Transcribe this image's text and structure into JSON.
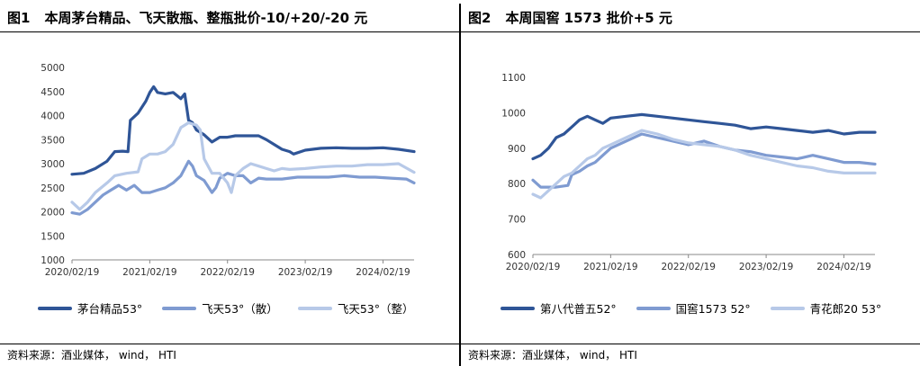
{
  "left": {
    "fig_no": "图1",
    "title": "本周茅台精品、飞天散瓶、整瓶批价-10/+20/-20 元",
    "source": "资料来源：酒业媒体， wind， HTI",
    "chart_data": {
      "type": "line",
      "xlabel": "",
      "ylabel": "",
      "ylim": [
        1000,
        5000
      ],
      "yticks": [
        1000,
        1500,
        2000,
        2500,
        3000,
        3500,
        4000,
        4500,
        5000
      ],
      "xlim": [
        0,
        4.4
      ],
      "xticks": [
        0,
        1,
        2,
        3,
        4
      ],
      "xtick_labels": [
        "2020/02/19",
        "2021/02/19",
        "2022/02/19",
        "2023/02/19",
        "2024/02/19"
      ],
      "legend_position": "bottom",
      "grid": false,
      "series": [
        {
          "name": "茅台精品53°",
          "color": "#2f5597",
          "points": [
            [
              0,
              2780
            ],
            [
              0.15,
              2800
            ],
            [
              0.3,
              2900
            ],
            [
              0.45,
              3050
            ],
            [
              0.55,
              3250
            ],
            [
              0.65,
              3260
            ],
            [
              0.72,
              3250
            ],
            [
              0.75,
              3900
            ],
            [
              0.85,
              4050
            ],
            [
              0.95,
              4300
            ],
            [
              1.0,
              4480
            ],
            [
              1.05,
              4600
            ],
            [
              1.1,
              4480
            ],
            [
              1.2,
              4450
            ],
            [
              1.3,
              4480
            ],
            [
              1.4,
              4350
            ],
            [
              1.45,
              4450
            ],
            [
              1.5,
              3900
            ],
            [
              1.55,
              3850
            ],
            [
              1.6,
              3700
            ],
            [
              1.7,
              3600
            ],
            [
              1.8,
              3450
            ],
            [
              1.9,
              3550
            ],
            [
              2.0,
              3550
            ],
            [
              2.1,
              3580
            ],
            [
              2.2,
              3580
            ],
            [
              2.4,
              3580
            ],
            [
              2.5,
              3500
            ],
            [
              2.6,
              3400
            ],
            [
              2.7,
              3300
            ],
            [
              2.8,
              3250
            ],
            [
              2.85,
              3200
            ],
            [
              3.0,
              3280
            ],
            [
              3.2,
              3320
            ],
            [
              3.4,
              3330
            ],
            [
              3.6,
              3320
            ],
            [
              3.8,
              3320
            ],
            [
              4.0,
              3330
            ],
            [
              4.2,
              3300
            ],
            [
              4.4,
              3250
            ]
          ]
        },
        {
          "name": "飞天53°（散）",
          "color": "#7f9bd1",
          "points": [
            [
              0,
              1980
            ],
            [
              0.1,
              1950
            ],
            [
              0.2,
              2050
            ],
            [
              0.3,
              2200
            ],
            [
              0.4,
              2350
            ],
            [
              0.5,
              2450
            ],
            [
              0.6,
              2550
            ],
            [
              0.7,
              2450
            ],
            [
              0.8,
              2550
            ],
            [
              0.9,
              2400
            ],
            [
              1.0,
              2400
            ],
            [
              1.1,
              2450
            ],
            [
              1.2,
              2500
            ],
            [
              1.3,
              2600
            ],
            [
              1.4,
              2750
            ],
            [
              1.5,
              3050
            ],
            [
              1.55,
              2950
            ],
            [
              1.6,
              2750
            ],
            [
              1.7,
              2650
            ],
            [
              1.8,
              2400
            ],
            [
              1.85,
              2500
            ],
            [
              1.9,
              2700
            ],
            [
              2.0,
              2800
            ],
            [
              2.1,
              2750
            ],
            [
              2.2,
              2750
            ],
            [
              2.3,
              2600
            ],
            [
              2.4,
              2700
            ],
            [
              2.5,
              2680
            ],
            [
              2.7,
              2680
            ],
            [
              2.9,
              2720
            ],
            [
              3.1,
              2720
            ],
            [
              3.3,
              2720
            ],
            [
              3.5,
              2750
            ],
            [
              3.7,
              2720
            ],
            [
              3.9,
              2720
            ],
            [
              4.1,
              2700
            ],
            [
              4.3,
              2680
            ],
            [
              4.4,
              2600
            ]
          ]
        },
        {
          "name": "飞天53°（整）",
          "color": "#b7c9e8",
          "points": [
            [
              0,
              2200
            ],
            [
              0.1,
              2050
            ],
            [
              0.2,
              2200
            ],
            [
              0.3,
              2400
            ],
            [
              0.45,
              2600
            ],
            [
              0.55,
              2750
            ],
            [
              0.7,
              2800
            ],
            [
              0.85,
              2830
            ],
            [
              0.9,
              3100
            ],
            [
              1.0,
              3200
            ],
            [
              1.1,
              3200
            ],
            [
              1.2,
              3250
            ],
            [
              1.3,
              3400
            ],
            [
              1.4,
              3750
            ],
            [
              1.5,
              3850
            ],
            [
              1.6,
              3800
            ],
            [
              1.65,
              3700
            ],
            [
              1.7,
              3100
            ],
            [
              1.8,
              2800
            ],
            [
              1.9,
              2800
            ],
            [
              2.0,
              2600
            ],
            [
              2.05,
              2400
            ],
            [
              2.1,
              2750
            ],
            [
              2.2,
              2900
            ],
            [
              2.3,
              3000
            ],
            [
              2.4,
              2950
            ],
            [
              2.5,
              2900
            ],
            [
              2.6,
              2850
            ],
            [
              2.7,
              2900
            ],
            [
              2.8,
              2880
            ],
            [
              3.0,
              2900
            ],
            [
              3.2,
              2930
            ],
            [
              3.4,
              2950
            ],
            [
              3.6,
              2950
            ],
            [
              3.8,
              2980
            ],
            [
              4.0,
              2980
            ],
            [
              4.2,
              3000
            ],
            [
              4.4,
              2820
            ]
          ]
        }
      ]
    }
  },
  "right": {
    "fig_no": "图2",
    "title": "本周国窖 1573 批价+5 元",
    "source": "资料来源：酒业媒体， wind， HTI",
    "chart_data": {
      "type": "line",
      "xlabel": "",
      "ylabel": "",
      "ylim": [
        600,
        1100
      ],
      "yticks": [
        600,
        700,
        800,
        900,
        1000,
        1100
      ],
      "xlim": [
        0,
        4.4
      ],
      "xticks": [
        0,
        1,
        2,
        3,
        4
      ],
      "xtick_labels": [
        "2020/02/19",
        "2021/02/19",
        "2022/02/19",
        "2023/02/19",
        "2024/02/19"
      ],
      "legend_position": "bottom",
      "grid": false,
      "series": [
        {
          "name": "第八代普五52°",
          "color": "#2f5597",
          "points": [
            [
              0,
              870
            ],
            [
              0.1,
              880
            ],
            [
              0.2,
              900
            ],
            [
              0.3,
              930
            ],
            [
              0.4,
              940
            ],
            [
              0.5,
              960
            ],
            [
              0.6,
              980
            ],
            [
              0.7,
              990
            ],
            [
              0.8,
              980
            ],
            [
              0.9,
              970
            ],
            [
              1.0,
              985
            ],
            [
              1.2,
              990
            ],
            [
              1.4,
              995
            ],
            [
              1.6,
              990
            ],
            [
              1.8,
              985
            ],
            [
              2.0,
              980
            ],
            [
              2.2,
              975
            ],
            [
              2.4,
              970
            ],
            [
              2.6,
              965
            ],
            [
              2.8,
              955
            ],
            [
              3.0,
              960
            ],
            [
              3.2,
              955
            ],
            [
              3.4,
              950
            ],
            [
              3.6,
              945
            ],
            [
              3.8,
              950
            ],
            [
              4.0,
              940
            ],
            [
              4.2,
              945
            ],
            [
              4.4,
              945
            ]
          ]
        },
        {
          "name": "国窖1573 52°",
          "color": "#7f9bd1",
          "points": [
            [
              0,
              810
            ],
            [
              0.1,
              790
            ],
            [
              0.3,
              790
            ],
            [
              0.45,
              795
            ],
            [
              0.5,
              825
            ],
            [
              0.6,
              835
            ],
            [
              0.7,
              850
            ],
            [
              0.8,
              860
            ],
            [
              0.9,
              880
            ],
            [
              1.0,
              900
            ],
            [
              1.2,
              920
            ],
            [
              1.4,
              940
            ],
            [
              1.6,
              930
            ],
            [
              1.8,
              920
            ],
            [
              2.0,
              910
            ],
            [
              2.2,
              920
            ],
            [
              2.4,
              905
            ],
            [
              2.6,
              895
            ],
            [
              2.8,
              890
            ],
            [
              3.0,
              880
            ],
            [
              3.2,
              875
            ],
            [
              3.4,
              870
            ],
            [
              3.6,
              880
            ],
            [
              3.8,
              870
            ],
            [
              4.0,
              860
            ],
            [
              4.2,
              860
            ],
            [
              4.4,
              855
            ]
          ]
        },
        {
          "name": "青花郎20 53°",
          "color": "#b7c9e8",
          "points": [
            [
              0,
              770
            ],
            [
              0.1,
              760
            ],
            [
              0.2,
              780
            ],
            [
              0.3,
              800
            ],
            [
              0.4,
              820
            ],
            [
              0.5,
              830
            ],
            [
              0.6,
              850
            ],
            [
              0.7,
              870
            ],
            [
              0.8,
              880
            ],
            [
              0.9,
              900
            ],
            [
              1.0,
              910
            ],
            [
              1.2,
              930
            ],
            [
              1.4,
              950
            ],
            [
              1.6,
              940
            ],
            [
              1.8,
              925
            ],
            [
              2.0,
              915
            ],
            [
              2.2,
              910
            ],
            [
              2.4,
              905
            ],
            [
              2.6,
              895
            ],
            [
              2.8,
              880
            ],
            [
              3.0,
              870
            ],
            [
              3.2,
              860
            ],
            [
              3.4,
              850
            ],
            [
              3.6,
              845
            ],
            [
              3.8,
              835
            ],
            [
              4.0,
              830
            ],
            [
              4.2,
              830
            ],
            [
              4.4,
              830
            ]
          ]
        }
      ]
    }
  }
}
